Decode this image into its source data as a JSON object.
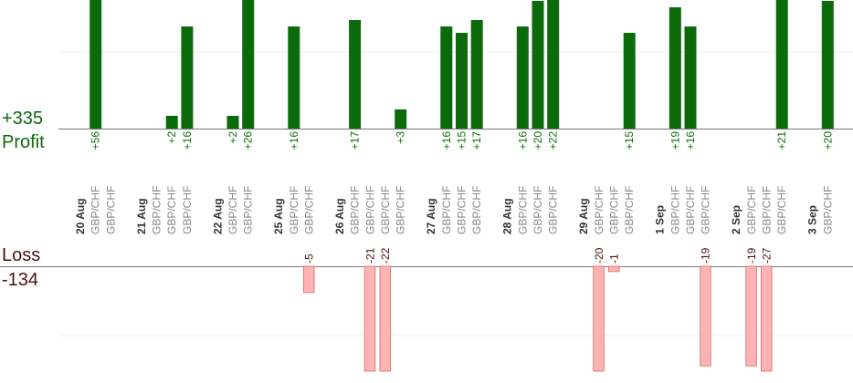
{
  "summary": {
    "profit_total": "+335",
    "profit_label": "Profit",
    "loss_label": "Loss",
    "loss_total": "-134"
  },
  "colors": {
    "profit_bar": "#0b6b0b",
    "profit_text": "#0a6b0a",
    "loss_bar": "#ffb3b3",
    "loss_border": "#e07a7a",
    "loss_text": "#4a1010",
    "date_text": "#333333",
    "pair_text": "#888888",
    "grid": "#eeeeee",
    "axis": "#777777"
  },
  "chart_data": {
    "type": "bar",
    "profit_axis_visible_max": 20,
    "loss_axis_visible_max": 20,
    "columns": [
      {
        "kind": "date",
        "text": "20 Aug"
      },
      {
        "kind": "pair",
        "text": "GBP/CHF",
        "profit": 56,
        "profit_label": "+56"
      },
      {
        "kind": "pair",
        "text": "GBP/CHF"
      },
      {
        "kind": "spacer"
      },
      {
        "kind": "date",
        "text": "21 Aug"
      },
      {
        "kind": "pair",
        "text": "GBP/CHF"
      },
      {
        "kind": "pair",
        "text": "GBP/CHF",
        "profit": 2,
        "profit_label": "+2"
      },
      {
        "kind": "pair",
        "text": "GBP/CHF",
        "profit": 16,
        "profit_label": "+16"
      },
      {
        "kind": "spacer"
      },
      {
        "kind": "date",
        "text": "22 Aug"
      },
      {
        "kind": "pair",
        "text": "GBP/CHF",
        "profit": 2,
        "profit_label": "+2"
      },
      {
        "kind": "pair",
        "text": "GBP/CHF",
        "profit": 26,
        "profit_label": "+26"
      },
      {
        "kind": "spacer"
      },
      {
        "kind": "date",
        "text": "25 Aug"
      },
      {
        "kind": "pair",
        "text": "GBP/CHF",
        "profit": 16,
        "profit_label": "+16"
      },
      {
        "kind": "pair",
        "text": "GBP/CHF",
        "loss": 5,
        "loss_label": "-5"
      },
      {
        "kind": "spacer"
      },
      {
        "kind": "date",
        "text": "26 Aug"
      },
      {
        "kind": "pair",
        "text": "GBP/CHF",
        "profit": 17,
        "profit_label": "+17"
      },
      {
        "kind": "pair",
        "text": "GBP/CHF",
        "loss": 21,
        "loss_label": "-21"
      },
      {
        "kind": "pair",
        "text": "GBP/CHF",
        "loss": 22,
        "loss_label": "-22"
      },
      {
        "kind": "pair",
        "text": "GBP/CHF",
        "profit": 3,
        "profit_label": "+3"
      },
      {
        "kind": "spacer"
      },
      {
        "kind": "date",
        "text": "27 Aug"
      },
      {
        "kind": "pair",
        "text": "GBP/CHF",
        "profit": 16,
        "profit_label": "+16"
      },
      {
        "kind": "pair",
        "text": "GBP/CHF",
        "profit": 15,
        "profit_label": "+15"
      },
      {
        "kind": "pair",
        "text": "GBP/CHF",
        "profit": 17,
        "profit_label": "+17"
      },
      {
        "kind": "spacer"
      },
      {
        "kind": "date",
        "text": "28 Aug"
      },
      {
        "kind": "pair",
        "text": "GBP/CHF",
        "profit": 16,
        "profit_label": "+16"
      },
      {
        "kind": "pair",
        "text": "GBP/CHF",
        "profit": 20,
        "profit_label": "+20"
      },
      {
        "kind": "pair",
        "text": "GBP/CHF",
        "profit": 22,
        "profit_label": "+22"
      },
      {
        "kind": "spacer"
      },
      {
        "kind": "date",
        "text": "29 Aug"
      },
      {
        "kind": "pair",
        "text": "GBP/CHF",
        "loss": 20,
        "loss_label": "-20"
      },
      {
        "kind": "pair",
        "text": "GBP/CHF",
        "loss": 1,
        "loss_label": "-1"
      },
      {
        "kind": "pair",
        "text": "GBP/CHF",
        "profit": 15,
        "profit_label": "+15"
      },
      {
        "kind": "spacer"
      },
      {
        "kind": "date",
        "text": "1 Sep"
      },
      {
        "kind": "pair",
        "text": "GBP/CHF",
        "profit": 19,
        "profit_label": "+19"
      },
      {
        "kind": "pair",
        "text": "GBP/CHF",
        "profit": 16,
        "profit_label": "+16"
      },
      {
        "kind": "pair",
        "text": "GBP/CHF",
        "loss": 19,
        "loss_label": "-19"
      },
      {
        "kind": "spacer"
      },
      {
        "kind": "date",
        "text": "2 Sep"
      },
      {
        "kind": "pair",
        "text": "GBP/CHF",
        "loss": 19,
        "loss_label": "-19"
      },
      {
        "kind": "pair",
        "text": "GBP/CHF",
        "loss": 27,
        "loss_label": "-27"
      },
      {
        "kind": "pair",
        "text": "GBP/CHF",
        "profit": 21,
        "profit_label": "+21"
      },
      {
        "kind": "spacer"
      },
      {
        "kind": "date",
        "text": "3 Sep"
      },
      {
        "kind": "pair",
        "text": "GBP/CHF",
        "profit": 20,
        "profit_label": "+20"
      }
    ]
  }
}
